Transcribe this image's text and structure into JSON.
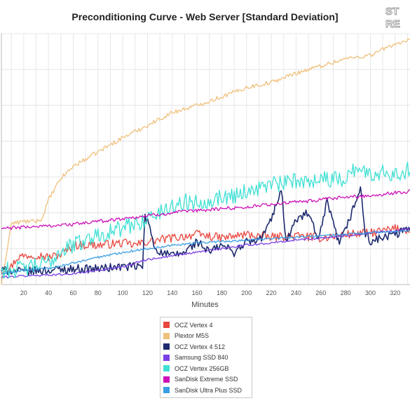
{
  "chart_data": {
    "type": "line",
    "title": "Preconditioning Curve - Web Server [Standard Deviation]",
    "xlabel": "Minutes",
    "ylabel": "",
    "xlim": [
      2,
      332
    ],
    "ylim": [
      0,
      350
    ],
    "x_ticks": [
      20,
      40,
      60,
      80,
      100,
      120,
      140,
      160,
      180,
      200,
      220,
      240,
      260,
      280,
      300,
      320
    ],
    "grid": true,
    "legend_position": "bottom-center",
    "series": [
      {
        "name": "OCZ Vertex 4",
        "color": "#e8473f",
        "x": [
          2,
          10,
          15,
          20,
          30,
          40,
          50,
          60,
          80,
          100,
          110,
          120,
          140,
          160,
          180,
          200,
          220,
          240,
          260,
          280,
          300,
          320,
          332
        ],
        "y": [
          20,
          25,
          38,
          40,
          42,
          38,
          42,
          55,
          55,
          58,
          55,
          60,
          65,
          70,
          65,
          70,
          66,
          68,
          65,
          70,
          72,
          78,
          76
        ]
      },
      {
        "name": "Plextor M5S",
        "color": "#efc07b",
        "x": [
          2,
          10,
          20,
          30,
          35,
          40,
          50,
          60,
          80,
          100,
          120,
          140,
          160,
          180,
          200,
          220,
          240,
          260,
          280,
          300,
          320,
          332
        ],
        "y": [
          0,
          85,
          88,
          88,
          92,
          118,
          148,
          165,
          185,
          205,
          222,
          240,
          250,
          262,
          275,
          282,
          295,
          305,
          315,
          320,
          336,
          340
        ]
      },
      {
        "name": "OCZ Vertex 4 512",
        "color": "#1e2a6e",
        "x": [
          2,
          20,
          40,
          60,
          80,
          100,
          116,
          118,
          122,
          125,
          130,
          140,
          150,
          160,
          170,
          180,
          190,
          200,
          210,
          220,
          228,
          232,
          240,
          250,
          258,
          265,
          275,
          285,
          292,
          296,
          300,
          310,
          320,
          332
        ],
        "y": [
          20,
          18,
          20,
          22,
          22,
          25,
          25,
          95,
          80,
          55,
          45,
          40,
          45,
          60,
          45,
          55,
          45,
          60,
          60,
          90,
          135,
          60,
          90,
          100,
          60,
          115,
          55,
          100,
          135,
          70,
          60,
          65,
          70,
          78
        ]
      },
      {
        "name": "Samsung SSD 840",
        "color": "#7b3fe4",
        "x": [
          2,
          20,
          60,
          100,
          120,
          140,
          160,
          180,
          200,
          220,
          240,
          260,
          280,
          300,
          320,
          332
        ],
        "y": [
          10,
          12,
          15,
          25,
          35,
          40,
          45,
          50,
          55,
          58,
          62,
          65,
          68,
          72,
          75,
          78
        ]
      },
      {
        "name": "OCZ Vertex 256GB",
        "color": "#3fe0d4",
        "x": [
          2,
          20,
          40,
          50,
          60,
          70,
          80,
          100,
          110,
          120,
          130,
          140,
          150,
          160,
          170,
          180,
          190,
          200,
          210,
          220,
          230,
          240,
          250,
          260,
          270,
          280,
          290,
          300,
          310,
          320,
          332
        ],
        "y": [
          20,
          22,
          30,
          48,
          55,
          62,
          70,
          78,
          85,
          92,
          100,
          110,
          115,
          115,
          118,
          122,
          125,
          130,
          135,
          140,
          140,
          145,
          145,
          150,
          145,
          150,
          165,
          150,
          160,
          155,
          160
        ]
      },
      {
        "name": "SanDisk Extreme SSD",
        "color": "#cc10b8",
        "x": [
          2,
          20,
          40,
          60,
          80,
          100,
          120,
          140,
          160,
          180,
          200,
          220,
          240,
          260,
          280,
          300,
          320,
          332
        ],
        "y": [
          78,
          80,
          82,
          84,
          88,
          92,
          96,
          100,
          103,
          106,
          108,
          112,
          115,
          118,
          122,
          124,
          128,
          130
        ]
      },
      {
        "name": "SanDisk Ultra Plus SSD",
        "color": "#3a9ee4",
        "x": [
          2,
          20,
          40,
          60,
          80,
          100,
          120,
          140,
          160,
          180,
          200,
          220,
          240,
          260,
          280,
          300,
          320,
          332
        ],
        "y": [
          15,
          20,
          22,
          30,
          38,
          45,
          50,
          55,
          58,
          60,
          62,
          64,
          66,
          68,
          70,
          72,
          74,
          75
        ]
      }
    ]
  }
}
